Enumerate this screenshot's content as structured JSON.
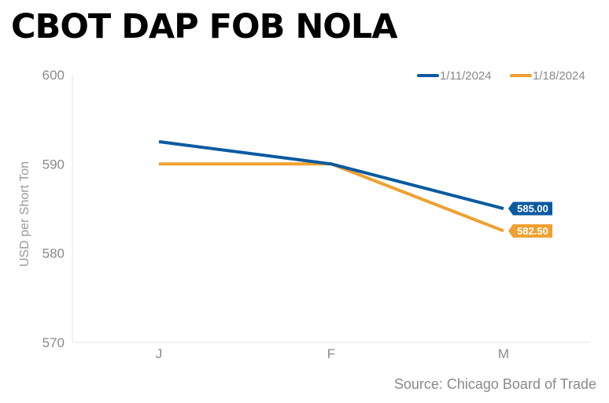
{
  "chart_data": {
    "type": "line",
    "title": "CBOT DAP FOB NOLA",
    "ylabel": "USD per Short Ton",
    "xlabel": "",
    "categories": [
      "J",
      "F",
      "M"
    ],
    "ylim": [
      570,
      600
    ],
    "yticks": [
      570,
      580,
      590,
      600
    ],
    "grid": false,
    "legend_position": "top-right",
    "series": [
      {
        "name": "1/11/2024",
        "color": "#0a5aa0",
        "values": [
          592.5,
          590,
          585
        ],
        "end_label": "585.00"
      },
      {
        "name": "1/18/2024",
        "color": "#f0a030",
        "values": [
          590,
          590,
          582.5
        ],
        "end_label": "582.50"
      }
    ]
  },
  "source": "Source: Chicago Board of Trade"
}
